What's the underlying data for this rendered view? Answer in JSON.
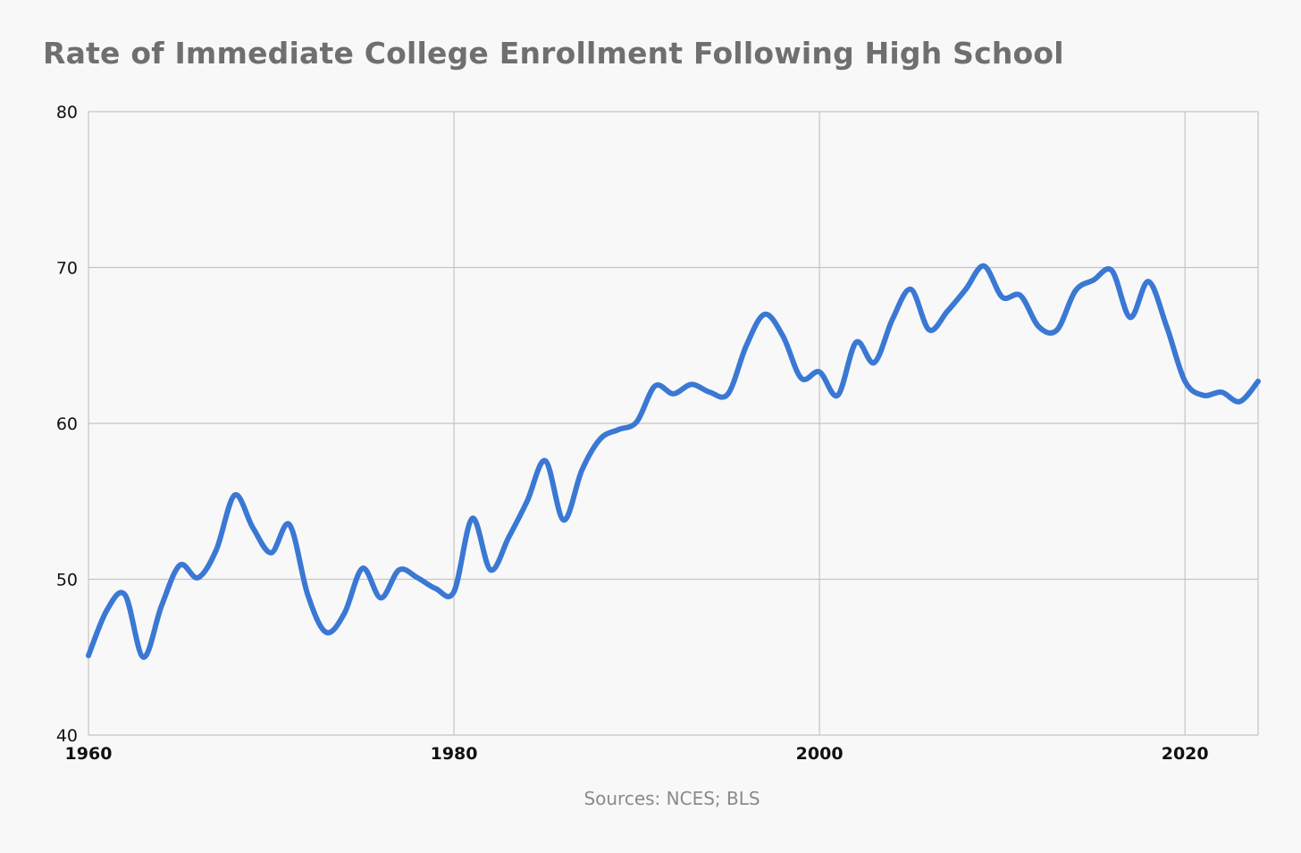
{
  "chart_data": {
    "type": "line",
    "title": "Rate of Immediate College Enrollment Following High School",
    "xlabel": "",
    "ylabel": "",
    "source": "Sources: NCES; BLS",
    "xlim": [
      1960,
      2024
    ],
    "ylim": [
      40,
      80
    ],
    "x_ticks": [
      1960,
      1980,
      2000,
      2020
    ],
    "y_ticks": [
      40,
      50,
      60,
      70,
      80
    ],
    "grid": true,
    "legend": "none",
    "colors": {
      "series": "#3a78d4",
      "grid": "#c4c4c4",
      "title": "#6f6f6f"
    },
    "x": [
      1960,
      1961,
      1962,
      1963,
      1964,
      1965,
      1966,
      1967,
      1968,
      1969,
      1970,
      1971,
      1972,
      1973,
      1974,
      1975,
      1976,
      1977,
      1978,
      1979,
      1980,
      1981,
      1982,
      1983,
      1984,
      1985,
      1986,
      1987,
      1988,
      1989,
      1990,
      1991,
      1992,
      1993,
      1994,
      1995,
      1996,
      1997,
      1998,
      1999,
      2000,
      2001,
      2002,
      2003,
      2004,
      2005,
      2006,
      2007,
      2008,
      2009,
      2010,
      2011,
      2012,
      2013,
      2014,
      2015,
      2016,
      2017,
      2018,
      2019,
      2020,
      2021,
      2022,
      2023,
      2024
    ],
    "series": [
      {
        "values": [
          45.1,
          48.0,
          49.0,
          45.0,
          48.3,
          50.9,
          50.1,
          51.9,
          55.4,
          53.3,
          51.7,
          53.5,
          49.0,
          46.6,
          47.8,
          50.7,
          48.8,
          50.6,
          50.1,
          49.4,
          49.2,
          53.9,
          50.6,
          52.7,
          55.0,
          57.6,
          53.8,
          57.0,
          59.0,
          59.6,
          60.1,
          62.4,
          61.9,
          62.5,
          62.0,
          61.9,
          65.0,
          67.0,
          65.6,
          62.9,
          63.3,
          61.8,
          65.2,
          63.9,
          66.7,
          68.6,
          66.0,
          67.2,
          68.6,
          70.1,
          68.1,
          68.2,
          66.2,
          66.0,
          68.5,
          69.2,
          69.8,
          66.8,
          69.1,
          66.2,
          62.7,
          61.8,
          62.0,
          61.4,
          62.7
        ]
      }
    ]
  }
}
